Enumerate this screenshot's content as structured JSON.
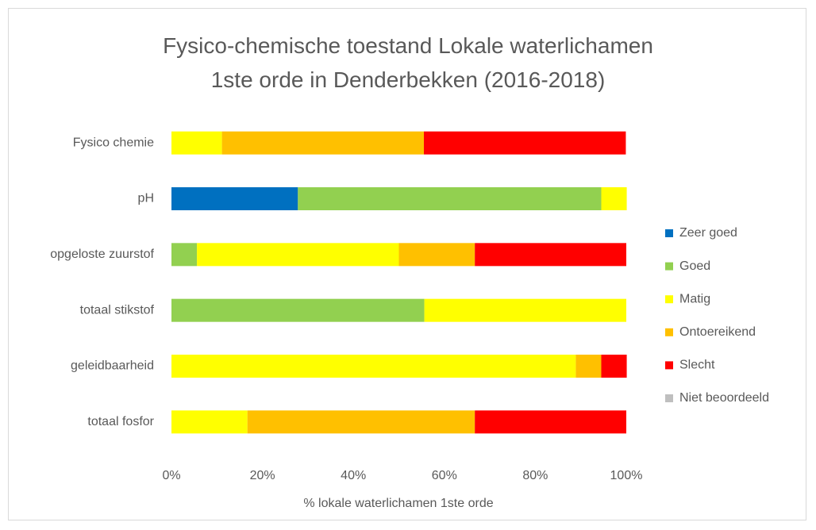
{
  "chart_data": {
    "type": "stacked_barh",
    "title": "Fysico-chemische toestand Lokale waterlichamen 1ste orde in Denderbekken (2016-2018)",
    "xlabel": "% lokale waterlichamen 1ste orde",
    "categories": [
      "Fysico chemie",
      "pH",
      "opgeloste zuurstof",
      "totaal stikstof",
      "geleidbaarheid",
      "totaal fosfor"
    ],
    "series": [
      {
        "name": "Zeer goed",
        "color": "#0070c0",
        "values": [
          0,
          27.8,
          0,
          0,
          0,
          0
        ]
      },
      {
        "name": "Goed",
        "color": "#92d050",
        "values": [
          0,
          66.7,
          5.6,
          55.6,
          0,
          0
        ]
      },
      {
        "name": "Matig",
        "color": "#ffff00",
        "values": [
          11.1,
          5.6,
          44.4,
          44.4,
          88.9,
          16.7
        ]
      },
      {
        "name": "Ontoereikend",
        "color": "#ffc000",
        "values": [
          44.4,
          0,
          16.7,
          0,
          5.6,
          50
        ]
      },
      {
        "name": "Slecht",
        "color": "#ff0000",
        "values": [
          44.4,
          0,
          33.3,
          0,
          5.6,
          33.3
        ]
      },
      {
        "name": "Niet beoordeeld",
        "color": "#bfbfbf",
        "values": [
          0,
          0,
          0,
          0,
          0,
          0
        ]
      }
    ],
    "xlim": [
      0,
      100
    ],
    "xticks": [
      {
        "value": 0,
        "label": "0%"
      },
      {
        "value": 20,
        "label": "20%"
      },
      {
        "value": 40,
        "label": "40%"
      },
      {
        "value": 60,
        "label": "60%"
      },
      {
        "value": 80,
        "label": "80%"
      },
      {
        "value": 100,
        "label": "100%"
      }
    ],
    "grid": false,
    "legend": "right"
  }
}
